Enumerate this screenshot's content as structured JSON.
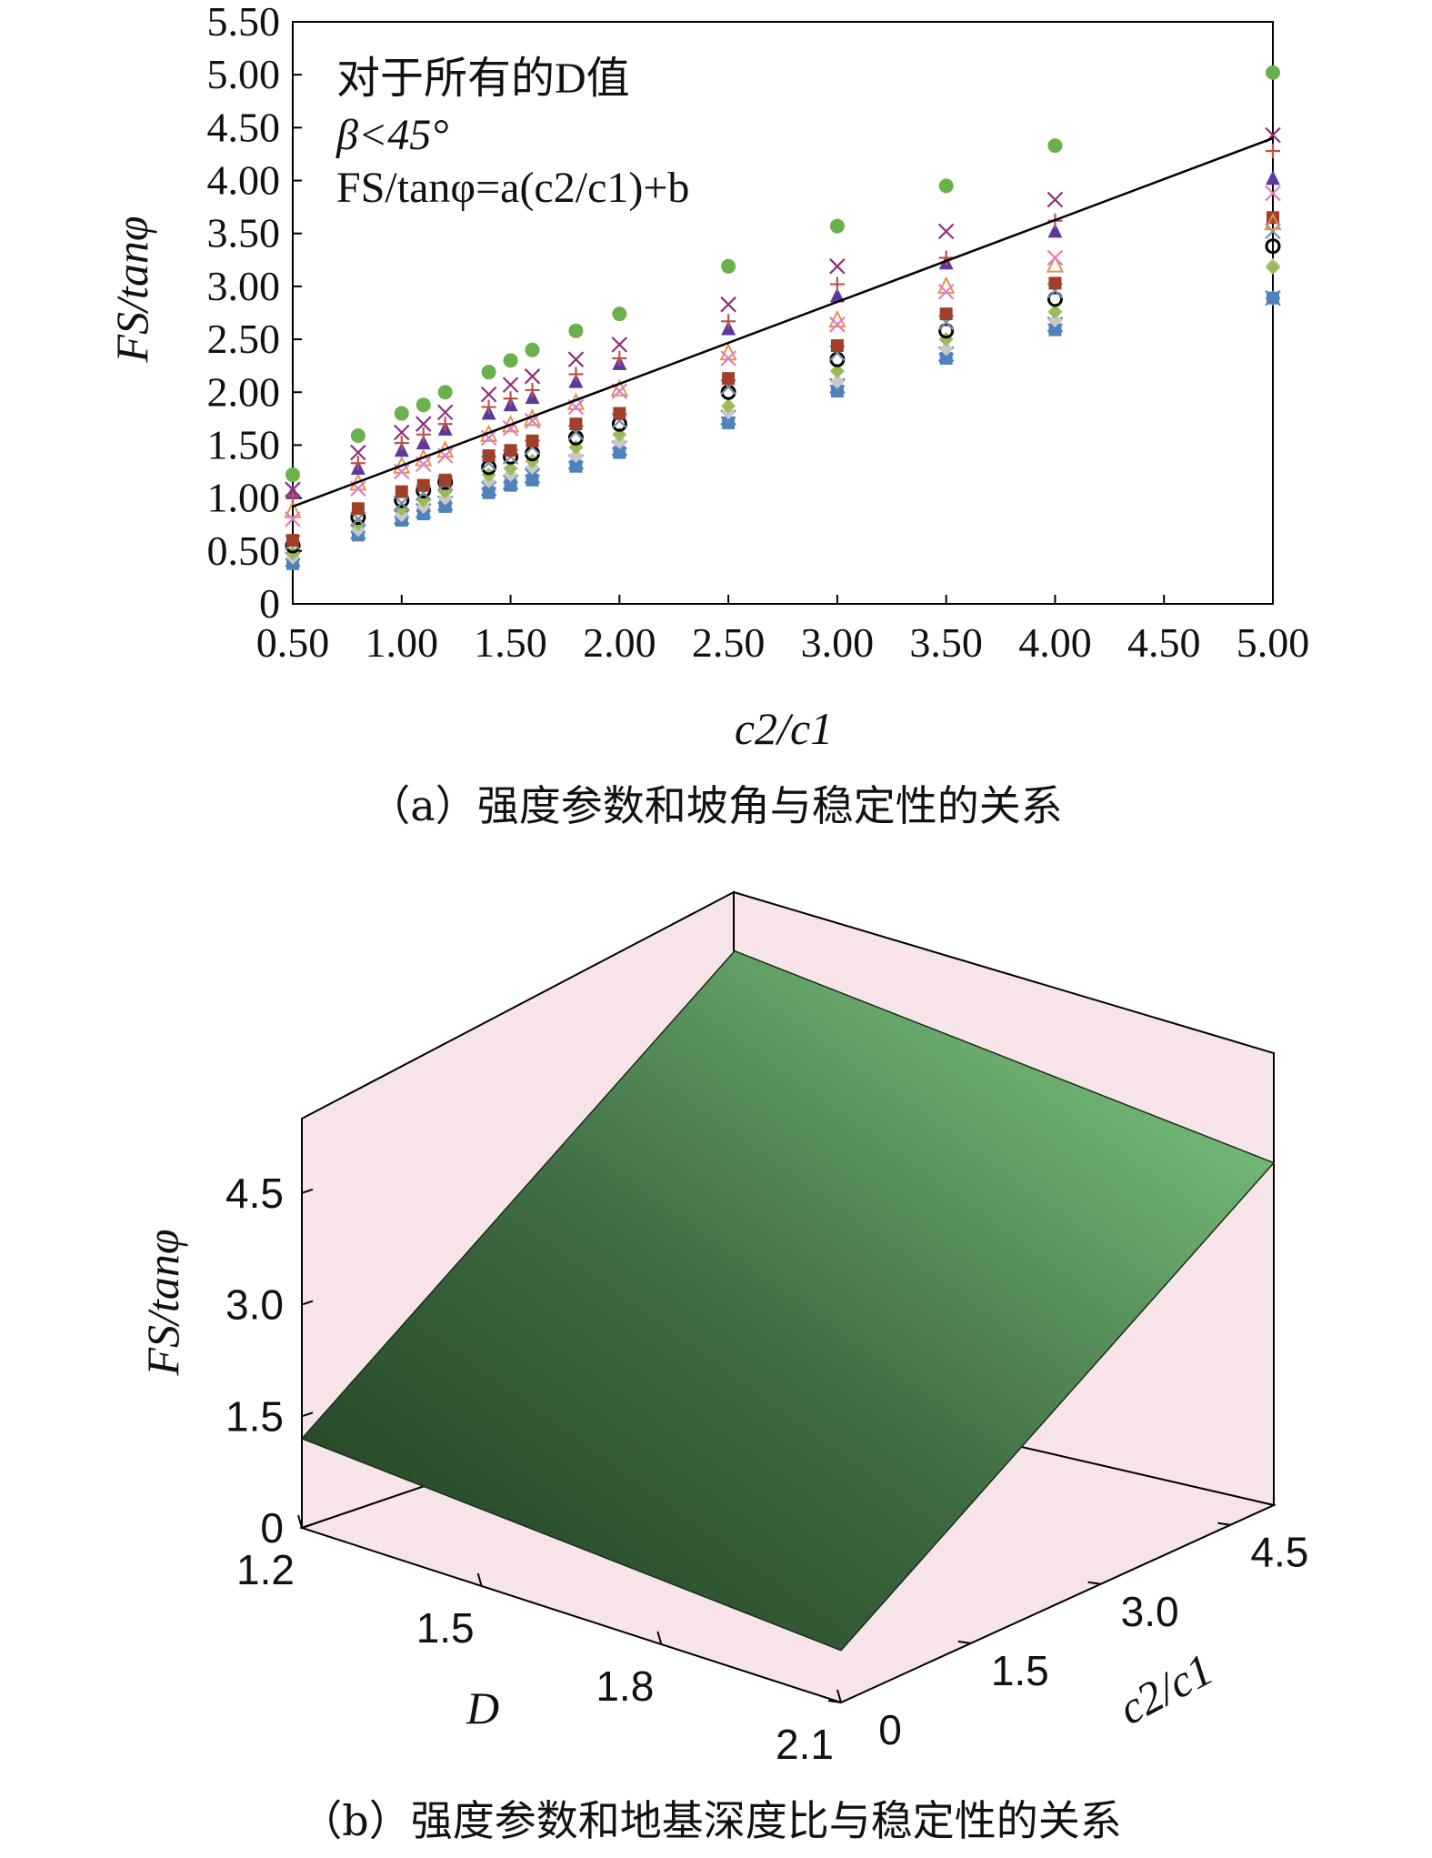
{
  "chart_data": [
    {
      "type": "scatter",
      "caption": "（a）强度参数和坡角与稳定性的关系",
      "xlabel": "c2/c1",
      "ylabel": "FS/tanφ",
      "xlim": [
        0.5,
        5.0
      ],
      "ylim": [
        0,
        5.5
      ],
      "x_ticks": [
        "0.50",
        "1.00",
        "1.50",
        "2.00",
        "2.50",
        "3.00",
        "3.50",
        "4.00",
        "4.50",
        "5.00"
      ],
      "y_ticks": [
        "0",
        "0.50",
        "1.00",
        "1.50",
        "2.00",
        "2.50",
        "3.00",
        "3.50",
        "4.00",
        "4.50",
        "5.00",
        "5.50"
      ],
      "annotations": [
        "对于所有的D值",
        "β<45°",
        "FS/tanφ=a(c2/c1)+b"
      ],
      "x": [
        0.5,
        0.8,
        1.0,
        1.1,
        1.2,
        1.4,
        1.5,
        1.6,
        1.8,
        2.0,
        2.5,
        3.0,
        3.5,
        4.0,
        5.0
      ],
      "series": [
        {
          "marker": "circle",
          "color": "#6ab04c",
          "values": [
            1.22,
            1.59,
            1.8,
            1.88,
            2.0,
            2.19,
            2.3,
            2.4,
            2.58,
            2.74,
            3.19,
            3.57,
            3.95,
            4.33,
            5.02
          ]
        },
        {
          "marker": "x",
          "color": "#8e2f7e",
          "values": [
            1.08,
            1.43,
            1.62,
            1.7,
            1.81,
            1.98,
            2.07,
            2.15,
            2.31,
            2.45,
            2.83,
            3.19,
            3.52,
            3.82,
            4.43
          ]
        },
        {
          "marker": "plus",
          "color": "#c0504d",
          "values": [
            1.02,
            1.33,
            1.52,
            1.6,
            1.7,
            1.86,
            1.94,
            2.02,
            2.17,
            2.32,
            2.67,
            3.02,
            3.27,
            3.62,
            4.28
          ]
        },
        {
          "marker": "triangle",
          "color": "#5b3a9e",
          "values": [
            1.05,
            1.28,
            1.45,
            1.52,
            1.65,
            1.8,
            1.88,
            1.95,
            2.1,
            2.27,
            2.6,
            2.91,
            3.22,
            3.52,
            4.02
          ]
        },
        {
          "marker": "x",
          "color": "#e07cc2",
          "values": [
            0.8,
            1.09,
            1.25,
            1.32,
            1.4,
            1.57,
            1.66,
            1.73,
            1.86,
            2.01,
            2.32,
            2.64,
            2.95,
            3.27,
            3.88
          ]
        },
        {
          "marker": "triangle-open",
          "color": "#e8904a",
          "values": [
            0.88,
            1.14,
            1.3,
            1.37,
            1.45,
            1.6,
            1.69,
            1.75,
            1.9,
            2.03,
            2.37,
            2.68,
            3.0,
            3.2,
            3.6
          ]
        },
        {
          "marker": "square",
          "color": "#a0402a",
          "values": [
            0.6,
            0.9,
            1.06,
            1.12,
            1.17,
            1.4,
            1.45,
            1.54,
            1.7,
            1.8,
            2.13,
            2.44,
            2.74,
            3.03,
            3.65
          ]
        },
        {
          "marker": "x",
          "color": "#7a8fa8",
          "values": [
            0.58,
            0.8,
            0.95,
            1.05,
            1.14,
            1.33,
            1.39,
            1.48,
            1.62,
            1.73,
            2.05,
            2.37,
            2.66,
            2.96,
            3.52
          ]
        },
        {
          "marker": "circle-open",
          "color": "#000000",
          "values": [
            0.55,
            0.82,
            0.98,
            1.07,
            1.15,
            1.29,
            1.39,
            1.42,
            1.57,
            1.7,
            2.0,
            2.31,
            2.58,
            2.88,
            3.38
          ]
        },
        {
          "marker": "diamond",
          "color": "#9bbb59",
          "values": [
            0.48,
            0.76,
            0.9,
            0.98,
            1.06,
            1.22,
            1.28,
            1.35,
            1.48,
            1.6,
            1.87,
            2.2,
            2.5,
            2.76,
            3.18
          ]
        },
        {
          "marker": "diamond",
          "color": "#c8c8c8",
          "values": [
            0.44,
            0.7,
            0.84,
            0.92,
            1.0,
            1.16,
            1.22,
            1.29,
            1.4,
            1.53,
            1.81,
            2.1,
            2.41,
            2.68,
            3.2
          ]
        },
        {
          "marker": "square",
          "color": "#4f81bd",
          "values": [
            0.38,
            0.65,
            0.79,
            0.85,
            0.92,
            1.05,
            1.12,
            1.17,
            1.3,
            1.43,
            1.71,
            2.01,
            2.32,
            2.59,
            2.89
          ]
        },
        {
          "marker": "star",
          "color": "#4f81bd",
          "values": [
            0.42,
            0.68,
            0.82,
            0.88,
            0.95,
            1.09,
            1.15,
            1.21,
            1.34,
            1.47,
            1.76,
            2.06,
            2.36,
            2.64,
            2.89
          ]
        }
      ],
      "fit_line": {
        "x": [
          0.5,
          5.0
        ],
        "y": [
          0.92,
          4.4
        ],
        "color": "#000000"
      }
    },
    {
      "type": "surface",
      "caption": "（b）强度参数和地基深度比与稳定性的关系",
      "xlabel": "D",
      "ylabel": "c2/c1",
      "zlabel": "FS/tanφ",
      "D_ticks": [
        "1.2",
        "1.5",
        "1.8",
        "2.1"
      ],
      "c_ticks": [
        "0",
        "1.5",
        "3.0",
        "4.5"
      ],
      "z_ticks": [
        "0",
        "1.5",
        "3.0",
        "4.5"
      ],
      "D_range": [
        1.2,
        2.1
      ],
      "c_range": [
        0,
        5.0
      ],
      "z_range": [
        0,
        5.5
      ],
      "surface_corners": {
        "D_min_c_min": 1.2,
        "D_max_c_min": 0.7,
        "D_min_c_max": 5.1,
        "D_max_c_max": 4.6
      },
      "pane_color": "#f6e4e8",
      "surface_color_low": "#1e3b1e",
      "surface_color_high": "#86d489"
    }
  ]
}
